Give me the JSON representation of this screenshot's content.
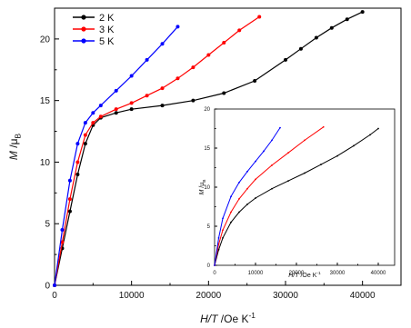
{
  "chart_data": [
    {
      "type": "line",
      "role": "main",
      "xlabel_main": "H",
      "xlabel_sep": "/",
      "xlabel_var2": "T",
      "xlabel_unit": " /Oe K",
      "xlabel_sup": "-1",
      "ylabel_main": "M",
      "ylabel_unit": " /μ",
      "ylabel_sub": "B",
      "xlim": [
        0,
        45000
      ],
      "ylim": [
        0,
        22.5
      ],
      "xticks": [
        0,
        10000,
        20000,
        30000,
        40000
      ],
      "xtick_labels": [
        "0",
        "10000",
        "20000",
        "30000",
        "40000"
      ],
      "yticks": [
        0,
        5,
        10,
        15,
        20
      ],
      "ytick_labels": [
        "0",
        "5",
        "10",
        "15",
        "20"
      ],
      "legend_position": "top-left",
      "grid": false,
      "series": [
        {
          "name": "2 K",
          "color": "#000000",
          "x": [
            0,
            1000,
            2000,
            3000,
            4000,
            5000,
            6000,
            8000,
            10000,
            14000,
            18000,
            22000,
            26000,
            30000,
            32000,
            34000,
            36000,
            38000,
            40000
          ],
          "y": [
            0,
            3.0,
            6.0,
            9.0,
            11.5,
            13.0,
            13.6,
            14.0,
            14.3,
            14.6,
            15.0,
            15.6,
            16.6,
            18.3,
            19.2,
            20.1,
            20.9,
            21.6,
            22.2
          ]
        },
        {
          "name": "3 K",
          "color": "#ff0000",
          "x": [
            0,
            1000,
            2000,
            3000,
            4000,
            5000,
            6000,
            8000,
            10000,
            12000,
            14000,
            16000,
            18000,
            20000,
            22000,
            24000,
            26600
          ],
          "y": [
            0,
            3.5,
            7.0,
            10.0,
            12.2,
            13.2,
            13.7,
            14.3,
            14.8,
            15.4,
            16.0,
            16.8,
            17.7,
            18.7,
            19.7,
            20.7,
            21.8
          ]
        },
        {
          "name": "5 K",
          "color": "#0000ff",
          "x": [
            0,
            1000,
            2000,
            3000,
            4000,
            5000,
            6000,
            8000,
            10000,
            12000,
            14000,
            16000
          ],
          "y": [
            0,
            4.5,
            8.5,
            11.5,
            13.2,
            14.0,
            14.6,
            15.8,
            17.0,
            18.3,
            19.6,
            21.0
          ]
        }
      ]
    },
    {
      "type": "line",
      "role": "inset",
      "xlabel_main": "H",
      "xlabel_sep": "/",
      "xlabel_var2": "T",
      "xlabel_unit": " /Oe K",
      "xlabel_sup": "-1",
      "ylabel_main": "M",
      "ylabel_unit": " /μ",
      "ylabel_sub": "B",
      "xlim": [
        0,
        44000
      ],
      "ylim": [
        0,
        20
      ],
      "xticks": [
        0,
        10000,
        20000,
        30000,
        40000
      ],
      "xtick_labels": [
        "0",
        "10000",
        "20000",
        "30000",
        "40000"
      ],
      "yticks": [
        0,
        5,
        10,
        15,
        20
      ],
      "ytick_labels": [
        "0",
        "5",
        "10",
        "15",
        "20"
      ],
      "grid": false,
      "series": [
        {
          "color": "#000000",
          "x": [
            0,
            1000,
            2000,
            4000,
            6000,
            8000,
            10000,
            14000,
            18000,
            22000,
            26000,
            30000,
            34000,
            38000,
            40000
          ],
          "y": [
            0,
            2.0,
            3.5,
            5.5,
            6.8,
            7.8,
            8.6,
            9.8,
            10.8,
            11.8,
            12.9,
            14.0,
            15.3,
            16.7,
            17.5
          ]
        },
        {
          "color": "#ff0000",
          "x": [
            0,
            1000,
            2000,
            4000,
            6000,
            8000,
            10000,
            14000,
            18000,
            22000,
            26600
          ],
          "y": [
            0,
            2.7,
            4.5,
            6.8,
            8.5,
            9.8,
            11.0,
            12.8,
            14.4,
            16.0,
            17.7
          ]
        },
        {
          "color": "#0000ff",
          "x": [
            0,
            1000,
            2000,
            4000,
            6000,
            8000,
            10000,
            12000,
            14000,
            16000
          ],
          "y": [
            0,
            3.5,
            6.0,
            8.8,
            10.6,
            12.0,
            13.3,
            14.6,
            16.0,
            17.6
          ]
        }
      ]
    }
  ]
}
